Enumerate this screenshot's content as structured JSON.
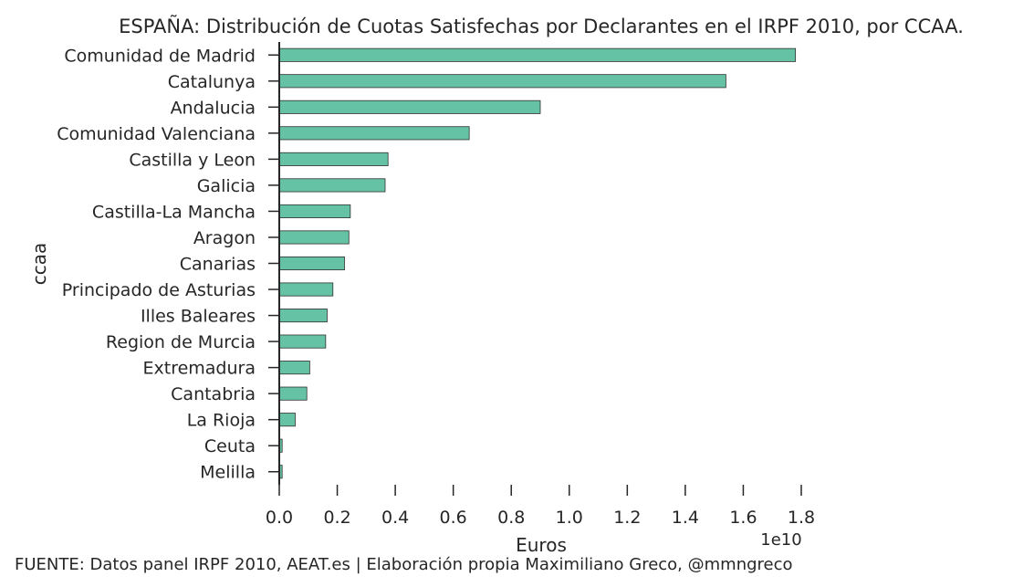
{
  "chart_data": {
    "type": "bar",
    "orientation": "horizontal",
    "title": "ESPAÑA: Distribución de Cuotas Satisfechas por Declarantes en el IRPF 2010, por CCAA.",
    "xlabel": "Euros",
    "ylabel": "ccaa",
    "x_scale_label": "1e10",
    "xlim": [
      0,
      1.8
    ],
    "x_ticks": [
      "0.0",
      "0.2",
      "0.4",
      "0.6",
      "0.8",
      "1.0",
      "1.2",
      "1.4",
      "1.6",
      "1.8"
    ],
    "categories": [
      "Comunidad de Madrid",
      "Catalunya",
      "Andalucia",
      "Comunidad Valenciana",
      "Castilla y Leon",
      "Galicia",
      "Castilla-La Mancha",
      "Aragon",
      "Canarias",
      "Principado de Asturias",
      "Illes Baleares",
      "Region de Murcia",
      "Extremadura",
      "Cantabria",
      "La Rioja",
      "Ceuta",
      "Melilla"
    ],
    "values": [
      1.78,
      1.54,
      0.9,
      0.655,
      0.375,
      0.365,
      0.245,
      0.24,
      0.225,
      0.185,
      0.165,
      0.16,
      0.105,
      0.095,
      0.055,
      0.01,
      0.01
    ],
    "bar_color": "#66c2a5",
    "grid": false
  },
  "footer": {
    "source": "FUENTE: Datos panel IRPF 2010, AEAT.es | Elaboración propia Maximiliano Greco, @mmngreco"
  }
}
